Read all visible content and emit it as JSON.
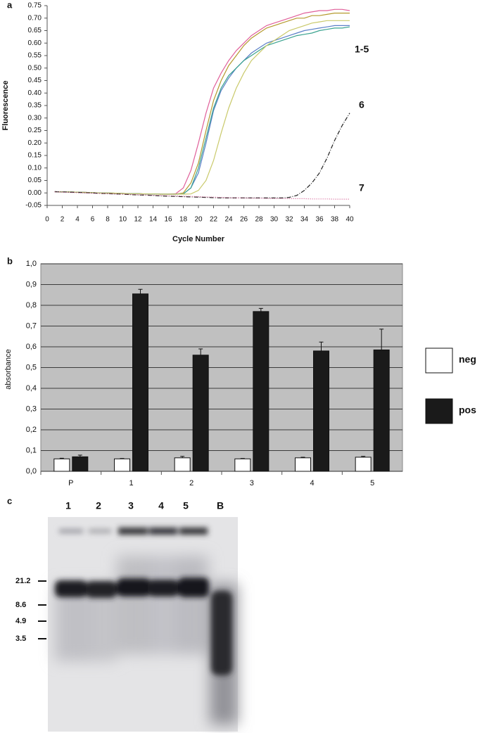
{
  "chart_data": [
    {
      "type": "line",
      "label": "a",
      "ylabel": "Fluorescence",
      "xlabel": "Cycle Number",
      "annotations": [
        "1-5",
        "6",
        "7"
      ],
      "x": [
        1,
        2,
        3,
        4,
        5,
        6,
        7,
        8,
        9,
        10,
        11,
        12,
        13,
        14,
        15,
        16,
        17,
        18,
        19,
        20,
        21,
        22,
        23,
        24,
        25,
        26,
        27,
        28,
        29,
        30,
        31,
        32,
        33,
        34,
        35,
        36,
        37,
        38,
        39,
        40
      ],
      "series": [
        {
          "color": "#e0609a",
          "dash": "none",
          "values": [
            0.005,
            0.004,
            0.004,
            0.003,
            0.002,
            0.001,
            0,
            0,
            -0.001,
            -0.002,
            -0.003,
            -0.003,
            -0.004,
            -0.004,
            -0.005,
            -0.005,
            -0.003,
            0.02,
            0.09,
            0.2,
            0.32,
            0.42,
            0.48,
            0.53,
            0.57,
            0.6,
            0.63,
            0.65,
            0.67,
            0.68,
            0.69,
            0.7,
            0.71,
            0.72,
            0.725,
            0.73,
            0.73,
            0.735,
            0.735,
            0.73
          ]
        },
        {
          "color": "#b59a2e",
          "dash": "none",
          "values": [
            0.005,
            0.004,
            0.004,
            0.003,
            0.002,
            0.001,
            0,
            0,
            -0.001,
            -0.002,
            -0.003,
            -0.003,
            -0.004,
            -0.004,
            -0.005,
            -0.005,
            -0.005,
            0,
            0.04,
            0.12,
            0.25,
            0.37,
            0.45,
            0.51,
            0.55,
            0.59,
            0.62,
            0.64,
            0.66,
            0.67,
            0.68,
            0.69,
            0.7,
            0.7,
            0.71,
            0.71,
            0.715,
            0.72,
            0.72,
            0.72
          ]
        },
        {
          "color": "#5b7fc7",
          "dash": "none",
          "values": [
            0.005,
            0.004,
            0.004,
            0.003,
            0.002,
            0.001,
            0,
            0,
            -0.001,
            -0.002,
            -0.003,
            -0.003,
            -0.004,
            -0.004,
            -0.005,
            -0.005,
            -0.005,
            -0.004,
            0.02,
            0.08,
            0.2,
            0.33,
            0.41,
            0.46,
            0.5,
            0.53,
            0.56,
            0.58,
            0.6,
            0.61,
            0.62,
            0.63,
            0.64,
            0.65,
            0.655,
            0.66,
            0.665,
            0.67,
            0.67,
            0.67
          ]
        },
        {
          "color": "#3aa38f",
          "dash": "none",
          "values": [
            0.005,
            0.004,
            0.004,
            0.003,
            0.002,
            0.001,
            0,
            0,
            -0.001,
            -0.002,
            -0.003,
            -0.003,
            -0.004,
            -0.004,
            -0.005,
            -0.005,
            -0.005,
            -0.004,
            0.02,
            0.1,
            0.22,
            0.34,
            0.42,
            0.47,
            0.5,
            0.53,
            0.55,
            0.57,
            0.59,
            0.6,
            0.61,
            0.62,
            0.63,
            0.635,
            0.64,
            0.65,
            0.655,
            0.66,
            0.66,
            0.665
          ]
        },
        {
          "color": "#c9c96a",
          "dash": "none",
          "values": [
            0.005,
            0.004,
            0.004,
            0.003,
            0.002,
            0.001,
            0,
            0,
            -0.001,
            -0.002,
            -0.003,
            -0.003,
            -0.004,
            -0.004,
            -0.005,
            -0.005,
            -0.005,
            -0.005,
            -0.004,
            0.01,
            0.05,
            0.13,
            0.24,
            0.34,
            0.42,
            0.48,
            0.53,
            0.56,
            0.59,
            0.61,
            0.63,
            0.65,
            0.66,
            0.67,
            0.68,
            0.685,
            0.69,
            0.69,
            0.69,
            0.69
          ]
        },
        {
          "color": "#222222",
          "dash": "6 2 1 2",
          "values": [
            0.005,
            0.004,
            0.003,
            0.002,
            0.001,
            0,
            -0.002,
            -0.003,
            -0.004,
            -0.005,
            -0.007,
            -0.008,
            -0.009,
            -0.01,
            -0.012,
            -0.013,
            -0.014,
            -0.015,
            -0.016,
            -0.017,
            -0.018,
            -0.019,
            -0.02,
            -0.02,
            -0.02,
            -0.02,
            -0.02,
            -0.02,
            -0.02,
            -0.02,
            -0.02,
            -0.018,
            -0.01,
            0.01,
            0.04,
            0.08,
            0.14,
            0.21,
            0.27,
            0.32
          ]
        },
        {
          "color": "#d0508a",
          "dash": "1 2",
          "values": [
            0.004,
            0.003,
            0.002,
            0.001,
            0,
            -0.001,
            -0.002,
            -0.003,
            -0.004,
            -0.005,
            -0.006,
            -0.007,
            -0.008,
            -0.009,
            -0.01,
            -0.011,
            -0.012,
            -0.013,
            -0.014,
            -0.015,
            -0.016,
            -0.017,
            -0.018,
            -0.019,
            -0.02,
            -0.02,
            -0.021,
            -0.021,
            -0.022,
            -0.022,
            -0.022,
            -0.023,
            -0.023,
            -0.023,
            -0.024,
            -0.024,
            -0.024,
            -0.025,
            -0.025,
            -0.025
          ]
        }
      ],
      "xlim": [
        0,
        40
      ],
      "xticks": [
        0,
        2,
        4,
        6,
        8,
        10,
        12,
        14,
        16,
        18,
        20,
        22,
        24,
        26,
        28,
        30,
        32,
        34,
        36,
        38,
        40
      ],
      "ylim": [
        -0.05,
        0.75
      ],
      "yticks": [
        -0.05,
        {
          "value": 0,
          "label": "0.00"
        },
        0.05,
        {
          "value": 0.1,
          "label": "0.10"
        },
        0.15,
        {
          "value": 0.2,
          "label": "0.20"
        },
        0.25,
        {
          "value": 0.3,
          "label": "0.30"
        },
        0.35,
        {
          "value": 0.4,
          "label": "0.40"
        },
        0.45,
        {
          "value": 0.5,
          "label": "0.50"
        },
        0.55,
        {
          "value": 0.6,
          "label": "0.60"
        },
        0.65,
        {
          "value": 0.7,
          "label": "0.70"
        },
        0.75
      ]
    },
    {
      "type": "bar",
      "label": "b",
      "ylabel": "absorbance",
      "grid": true,
      "legend": "right",
      "categories": [
        "P",
        "1",
        "2",
        "3",
        "4",
        "5"
      ],
      "series": [
        {
          "name": "neg",
          "color": "#ffffff",
          "values": [
            0.06,
            0.06,
            0.065,
            0.06,
            0.065,
            0.068
          ],
          "errors": [
            0.003,
            0.002,
            0.007,
            0.002,
            0.003,
            0.004
          ]
        },
        {
          "name": "pos",
          "color": "#1a1a1a",
          "values": [
            0.07,
            0.855,
            0.56,
            0.77,
            0.58,
            0.585
          ],
          "errors": [
            0.008,
            0.022,
            0.03,
            0.015,
            0.043,
            0.1
          ]
        }
      ],
      "ylim": [
        0,
        1
      ],
      "yticks": [
        {
          "value": 0,
          "label": "0,0"
        },
        {
          "value": 0.1,
          "label": "0,1"
        },
        {
          "value": 0.2,
          "label": "0,2"
        },
        {
          "value": 0.3,
          "label": "0,3"
        },
        {
          "value": 0.4,
          "label": "0,4"
        },
        {
          "value": 0.5,
          "label": "0,5"
        },
        {
          "value": 0.6,
          "label": "0,6"
        },
        {
          "value": 0.7,
          "label": "0,7"
        },
        {
          "value": 0.8,
          "label": "0,8"
        },
        {
          "value": 0.9,
          "label": "0,9"
        },
        {
          "value": 1,
          "label": "1,0"
        }
      ]
    }
  ],
  "gel": {
    "label": "c",
    "lanes": [
      "1",
      "2",
      "3",
      "4",
      "5",
      "B"
    ],
    "markers": [
      "21.2",
      "8.6",
      "4.9",
      "3.5"
    ]
  }
}
